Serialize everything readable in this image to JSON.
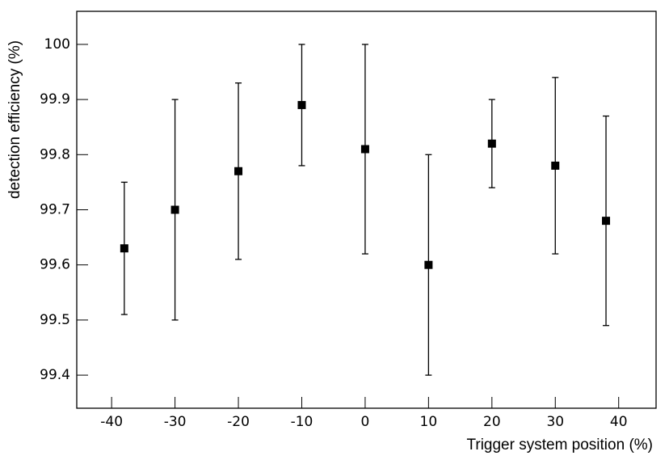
{
  "chart_data": {
    "type": "scatter",
    "x_label": "Trigger system position (%)",
    "y_label": "detection efficiency (%)",
    "x": [
      -38,
      -30,
      -20,
      -10,
      0,
      10,
      20,
      30,
      38
    ],
    "values": [
      99.63,
      99.7,
      99.77,
      99.89,
      99.81,
      99.6,
      99.82,
      99.78,
      99.68
    ],
    "errors": [
      0.12,
      0.2,
      0.16,
      0.11,
      0.19,
      0.2,
      0.08,
      0.16,
      0.19
    ],
    "color": "#000000",
    "xlim": [
      -45.5,
      45.9
    ],
    "xticks": [
      -40,
      -30,
      -20,
      -10,
      0,
      10,
      20,
      30,
      40
    ],
    "ylim": [
      99.34,
      100.06
    ],
    "yticks": [
      99.4,
      99.5,
      99.6,
      99.7,
      99.8,
      99.9,
      100
    ],
    "grid": false
  }
}
